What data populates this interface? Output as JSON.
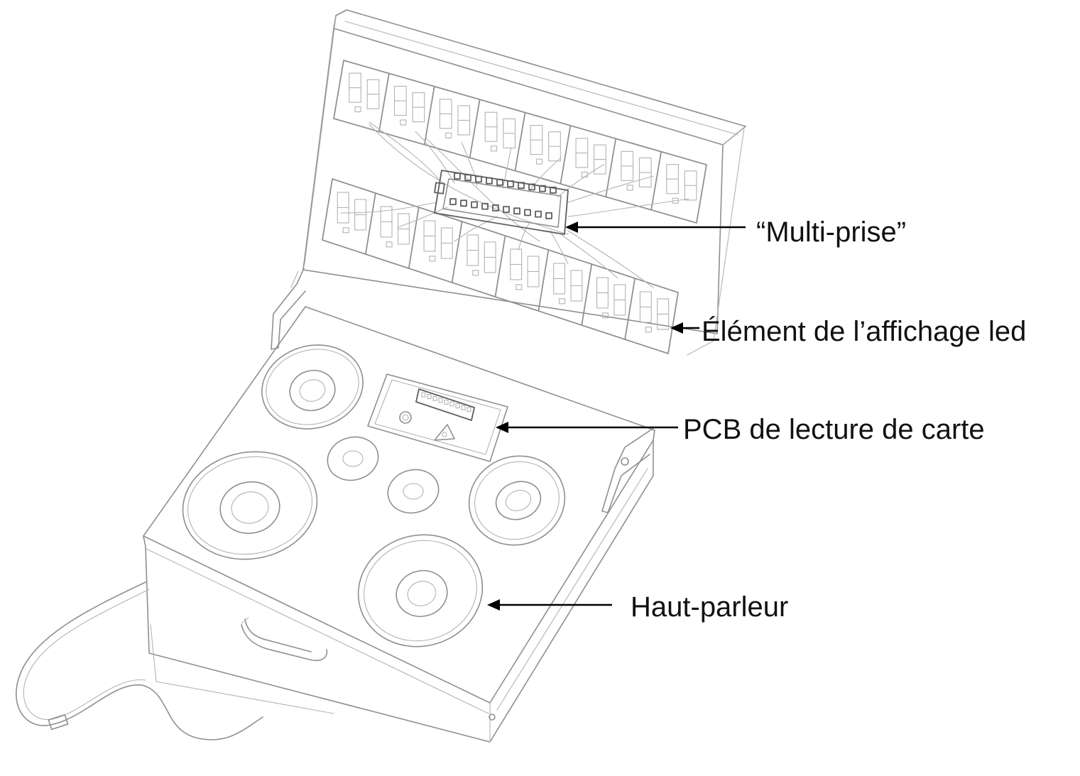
{
  "figure": {
    "kind": "pencil sketch",
    "subject": "laptop-style case with LED display and speakers"
  },
  "labels": {
    "multiprise": "“Multi-prise”",
    "led_element": "Élément de l’affichage led",
    "pcb": "PCB de lecture de carte",
    "speaker": "Haut-parleur"
  },
  "colors": {
    "pencil": "#8f8f8f",
    "arrow": "#000000",
    "text": "#111111"
  }
}
